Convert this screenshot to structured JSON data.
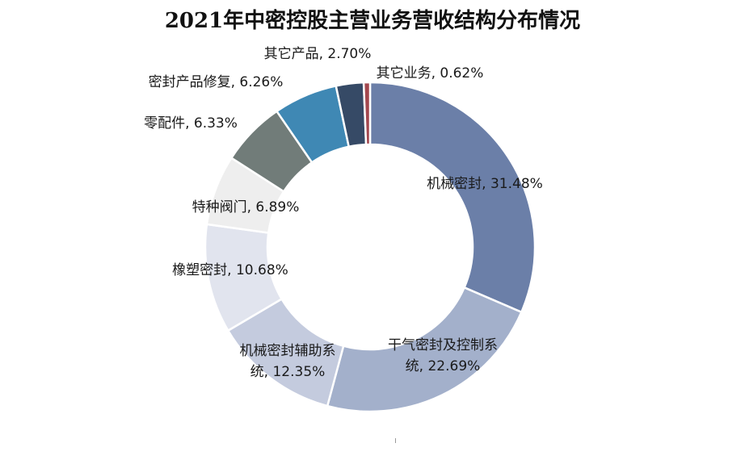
{
  "chart_data": {
    "type": "pie",
    "title": "2021年中密控股主营业务营收结构分布情况",
    "donut": true,
    "legend": "none",
    "slices": [
      {
        "name": "机械密封",
        "value": 31.48,
        "label_lines": [
          "机械密封, 31.48%"
        ],
        "color": "#6b7fa8"
      },
      {
        "name": "干气密封及控制系统",
        "value": 22.69,
        "label_lines": [
          "干气密封及控制系",
          "统, 22.69%"
        ],
        "color": "#a3b0cb"
      },
      {
        "name": "机械密封辅助系统",
        "value": 12.35,
        "label_lines": [
          "机械密封辅助系",
          "统, 12.35%"
        ],
        "color": "#c4cbde"
      },
      {
        "name": "橡塑密封",
        "value": 10.68,
        "label_lines": [
          "橡塑密封, 10.68%"
        ],
        "color": "#e1e4ee"
      },
      {
        "name": "特种阀门",
        "value": 6.89,
        "label_lines": [
          "特种阀门, 6.89%"
        ],
        "color": "#eeeeee"
      },
      {
        "name": "零配件",
        "value": 6.33,
        "label_lines": [
          "零配件, 6.33%"
        ],
        "color": "#717c79"
      },
      {
        "name": "密封产品修复",
        "value": 6.26,
        "label_lines": [
          "密封产品修复, 6.26%"
        ],
        "color": "#3f88b4"
      },
      {
        "name": "其它产品",
        "value": 2.7,
        "label_lines": [
          "其它产品, 2.70%"
        ],
        "color": "#364a66"
      },
      {
        "name": "其它业务",
        "value": 0.62,
        "label_lines": [
          "其它业务, 0.62%"
        ],
        "color": "#a3474e"
      }
    ]
  }
}
